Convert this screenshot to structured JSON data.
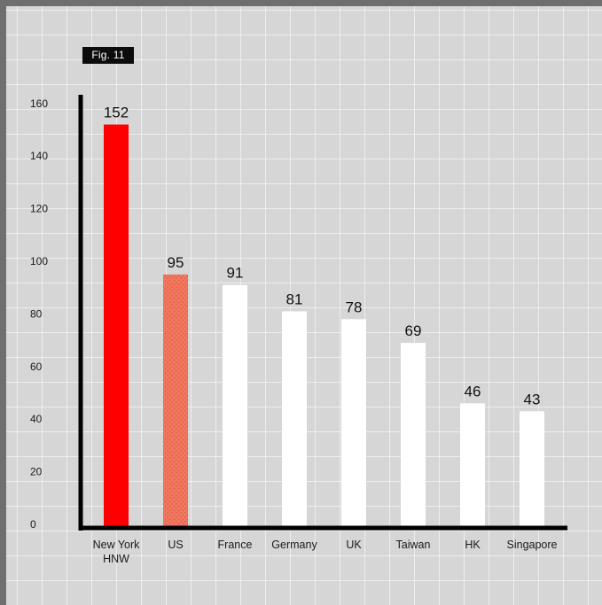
{
  "figure_tag": "Fig. 11",
  "chart_data": {
    "type": "bar",
    "title": "",
    "xlabel": "",
    "ylabel": "",
    "categories": [
      "New York HNW",
      "US",
      "France",
      "Germany",
      "UK",
      "Taiwan",
      "HK",
      "Singapore"
    ],
    "category_lines": [
      [
        "New York",
        "HNW"
      ],
      [
        "US"
      ],
      [
        "France"
      ],
      [
        "Germany"
      ],
      [
        "UK"
      ],
      [
        "Taiwan"
      ],
      [
        "HK"
      ],
      [
        "Singapore"
      ]
    ],
    "values": [
      152,
      95,
      91,
      81,
      78,
      69,
      46,
      43
    ],
    "ylim": [
      0,
      160
    ],
    "yticks": [
      0,
      20,
      40,
      60,
      80,
      100,
      120,
      140,
      160
    ],
    "grid": true,
    "legend": "none",
    "colors": {
      "highlight": "#ff0000",
      "secondary": "#f0785f",
      "secondary_dots": "#d9553c",
      "default": "#ffffff",
      "axis": "#000000",
      "background": "#d6d6d6"
    },
    "bar_colors": [
      "highlight",
      "secondary",
      "default",
      "default",
      "default",
      "default",
      "default",
      "default"
    ]
  }
}
